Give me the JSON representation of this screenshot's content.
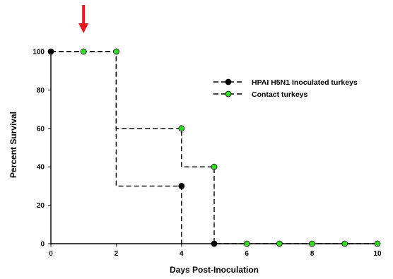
{
  "chart_data": {
    "type": "line",
    "title": "",
    "xlabel": "Days Post-Inoculation",
    "ylabel": "Percent Survival",
    "xlim": [
      0,
      10
    ],
    "ylim": [
      0,
      100
    ],
    "x_ticks": [
      "0",
      "2",
      "4",
      "6",
      "8",
      "10"
    ],
    "y_ticks": [
      "0",
      "20",
      "40",
      "60",
      "80",
      "100"
    ],
    "step": true,
    "legend_position": "top-right",
    "annotation": "red arrow pointing down at day 1",
    "series": [
      {
        "name": "HPAI H5N1 Inoculated turkeys",
        "marker_color": "#000000",
        "step_x": [
          0,
          2,
          2,
          4,
          4
        ],
        "step_y": [
          100,
          100,
          30,
          30,
          0
        ],
        "points": [
          [
            0,
            100
          ],
          [
            4,
            30
          ],
          [
            5,
            0
          ]
        ]
      },
      {
        "name": "Contact turkeys",
        "marker_color": "#33dd22",
        "step_x": [
          0,
          2,
          2,
          4,
          4,
          5,
          5,
          10
        ],
        "step_y": [
          100,
          100,
          60,
          60,
          40,
          40,
          0,
          0
        ],
        "points": [
          [
            1,
            100
          ],
          [
            2,
            100
          ],
          [
            4,
            60
          ],
          [
            5,
            40
          ],
          [
            6,
            0
          ],
          [
            7,
            0
          ],
          [
            8,
            0
          ],
          [
            9,
            0
          ],
          [
            10,
            0
          ]
        ]
      }
    ]
  },
  "colors": {
    "axis": "#000000",
    "line": "#000000",
    "arrow": "#e8141e"
  }
}
